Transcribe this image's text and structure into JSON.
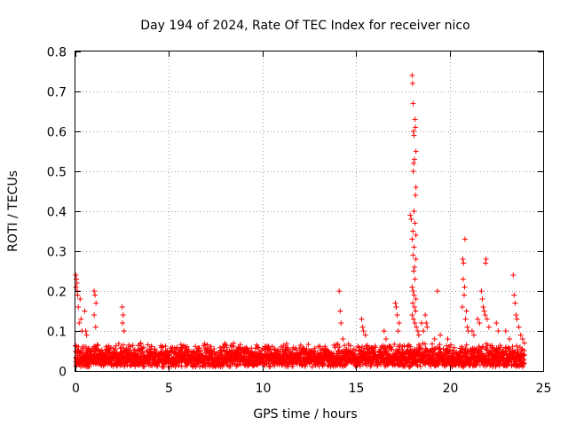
{
  "chart_data": {
    "type": "scatter",
    "title": "Day 194 of 2024, Rate Of TEC Index for receiver nico",
    "xlabel": "GPS time / hours",
    "ylabel": "ROTI / TECUs",
    "xlim": [
      0,
      25
    ],
    "ylim": [
      0,
      0.8
    ],
    "x_ticks": [
      0,
      5,
      10,
      15,
      20,
      25
    ],
    "y_ticks": [
      0,
      0.1,
      0.2,
      0.3,
      0.4,
      0.5,
      0.6,
      0.7,
      0.8
    ],
    "x_tick_labels": [
      "0",
      "5",
      "10",
      "15",
      "20",
      "25"
    ],
    "y_tick_labels": [
      "0",
      "0.1",
      "0.2",
      "0.3",
      "0.4",
      "0.5",
      "0.6",
      "0.7",
      "0.8"
    ],
    "grid": true,
    "marker": "+",
    "color": "#ff0000",
    "background_band": {
      "x_range": [
        0,
        24
      ],
      "baseline_low": 0.01,
      "baseline_high": 0.07,
      "approx_sample_count": 2800
    },
    "series": [
      {
        "name": "ROTI",
        "points": [
          [
            0.02,
            0.24
          ],
          [
            0.05,
            0.23
          ],
          [
            0.08,
            0.22
          ],
          [
            0.03,
            0.21
          ],
          [
            0.1,
            0.2
          ],
          [
            0.12,
            0.19
          ],
          [
            0.15,
            0.16
          ],
          [
            0.2,
            0.12
          ],
          [
            0.25,
            0.18
          ],
          [
            0.3,
            0.13
          ],
          [
            0.35,
            0.1
          ],
          [
            0.5,
            0.15
          ],
          [
            0.55,
            0.1
          ],
          [
            0.6,
            0.09
          ],
          [
            1.0,
            0.2
          ],
          [
            1.05,
            0.19
          ],
          [
            1.1,
            0.17
          ],
          [
            1.0,
            0.14
          ],
          [
            1.08,
            0.11
          ],
          [
            2.5,
            0.16
          ],
          [
            2.55,
            0.14
          ],
          [
            2.52,
            0.12
          ],
          [
            2.6,
            0.1
          ],
          [
            14.1,
            0.2
          ],
          [
            14.15,
            0.15
          ],
          [
            14.2,
            0.12
          ],
          [
            14.3,
            0.08
          ],
          [
            15.3,
            0.13
          ],
          [
            15.35,
            0.11
          ],
          [
            15.4,
            0.1
          ],
          [
            15.5,
            0.09
          ],
          [
            16.5,
            0.1
          ],
          [
            16.6,
            0.08
          ],
          [
            17.1,
            0.17
          ],
          [
            17.15,
            0.16
          ],
          [
            17.2,
            0.14
          ],
          [
            17.3,
            0.12
          ],
          [
            17.25,
            0.1
          ],
          [
            17.9,
            0.39
          ],
          [
            17.95,
            0.38
          ],
          [
            18.0,
            0.74
          ],
          [
            18.02,
            0.72
          ],
          [
            18.05,
            0.67
          ],
          [
            18.07,
            0.6
          ],
          [
            18.1,
            0.59
          ],
          [
            18.15,
            0.63
          ],
          [
            18.17,
            0.61
          ],
          [
            18.2,
            0.55
          ],
          [
            18.12,
            0.53
          ],
          [
            18.08,
            0.52
          ],
          [
            18.06,
            0.5
          ],
          [
            18.2,
            0.46
          ],
          [
            18.18,
            0.44
          ],
          [
            18.1,
            0.4
          ],
          [
            18.15,
            0.37
          ],
          [
            18.04,
            0.35
          ],
          [
            18.2,
            0.34
          ],
          [
            18.0,
            0.33
          ],
          [
            18.1,
            0.31
          ],
          [
            18.05,
            0.29
          ],
          [
            18.2,
            0.28
          ],
          [
            18.12,
            0.26
          ],
          [
            18.08,
            0.25
          ],
          [
            18.15,
            0.23
          ],
          [
            18.0,
            0.21
          ],
          [
            18.05,
            0.2
          ],
          [
            18.1,
            0.19
          ],
          [
            18.2,
            0.18
          ],
          [
            18.03,
            0.17
          ],
          [
            18.12,
            0.16
          ],
          [
            18.18,
            0.15
          ],
          [
            18.0,
            0.14
          ],
          [
            18.07,
            0.13
          ],
          [
            18.14,
            0.12
          ],
          [
            18.22,
            0.11
          ],
          [
            18.3,
            0.1
          ],
          [
            18.35,
            0.09
          ],
          [
            18.5,
            0.12
          ],
          [
            18.6,
            0.1
          ],
          [
            18.7,
            0.14
          ],
          [
            18.75,
            0.12
          ],
          [
            18.8,
            0.11
          ],
          [
            19.2,
            0.08
          ],
          [
            19.35,
            0.2
          ],
          [
            19.5,
            0.09
          ],
          [
            19.9,
            0.08
          ],
          [
            20.7,
            0.28
          ],
          [
            20.75,
            0.27
          ],
          [
            20.72,
            0.23
          ],
          [
            20.8,
            0.21
          ],
          [
            20.78,
            0.19
          ],
          [
            20.82,
            0.33
          ],
          [
            20.68,
            0.16
          ],
          [
            20.9,
            0.15
          ],
          [
            20.85,
            0.13
          ],
          [
            20.95,
            0.11
          ],
          [
            21.0,
            0.1
          ],
          [
            21.2,
            0.1
          ],
          [
            21.3,
            0.09
          ],
          [
            21.5,
            0.13
          ],
          [
            21.6,
            0.12
          ],
          [
            21.7,
            0.2
          ],
          [
            21.75,
            0.18
          ],
          [
            21.8,
            0.16
          ],
          [
            21.85,
            0.15
          ],
          [
            21.9,
            0.14
          ],
          [
            21.95,
            0.28
          ],
          [
            21.92,
            0.27
          ],
          [
            22.0,
            0.13
          ],
          [
            22.1,
            0.11
          ],
          [
            22.5,
            0.12
          ],
          [
            22.6,
            0.1
          ],
          [
            23.0,
            0.1
          ],
          [
            23.2,
            0.08
          ],
          [
            23.4,
            0.24
          ],
          [
            23.45,
            0.19
          ],
          [
            23.5,
            0.17
          ],
          [
            23.55,
            0.14
          ],
          [
            23.6,
            0.13
          ],
          [
            23.7,
            0.11
          ],
          [
            23.8,
            0.09
          ],
          [
            23.9,
            0.08
          ],
          [
            24.0,
            0.07
          ]
        ]
      }
    ]
  }
}
